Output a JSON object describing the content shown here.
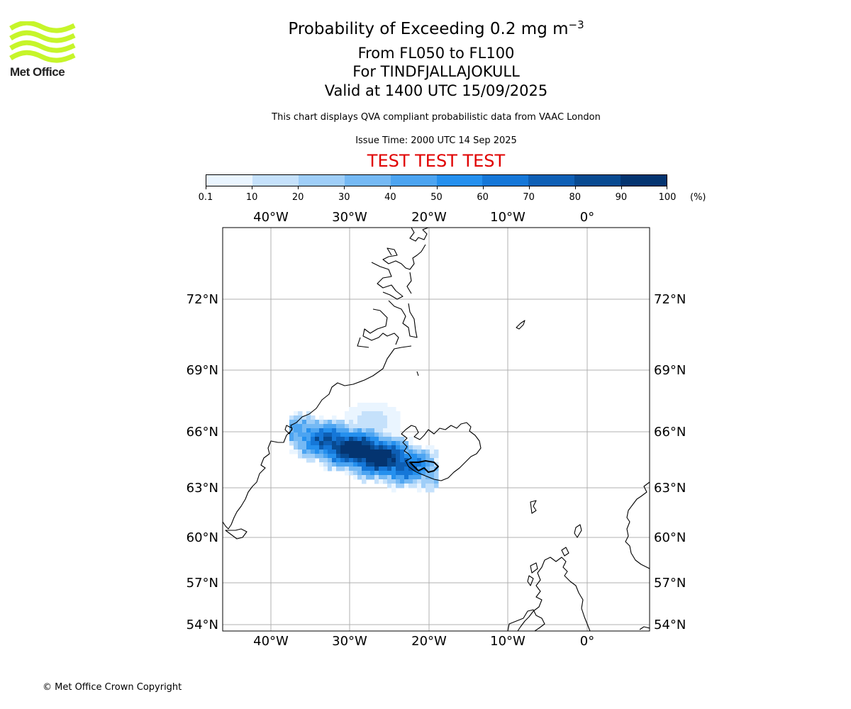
{
  "header": {
    "title_prefix": "Probability of Exceeding 0.2 mg m",
    "title_exponent": "−3",
    "levels": "From FL050 to FL100",
    "volcano": "For TINDFJALLAJOKULL",
    "valid": "Valid at 1400 UTC 15/09/2025",
    "subtitle": "This chart displays QVA compliant probabilistic data from VAAC London",
    "issue_time": "Issue Time: 2000 UTC 14 Sep 2025",
    "banner": "TEST TEST TEST"
  },
  "logo": {
    "text": "Met Office",
    "color": "#c6f52a"
  },
  "colorbar": {
    "labels": [
      "0.1",
      "10",
      "20",
      "30",
      "40",
      "50",
      "60",
      "70",
      "80",
      "90",
      "100"
    ],
    "unit": "(%)",
    "colors": [
      "#eaf5ff",
      "#c5e1fb",
      "#9fcef8",
      "#75b9f4",
      "#4ca4f1",
      "#2590ee",
      "#1577d8",
      "#0e5fb5",
      "#084a91",
      "#043470"
    ]
  },
  "map": {
    "lon_labels": [
      "40°W",
      "30°W",
      "20°W",
      "10°W",
      "0°"
    ],
    "lat_labels": [
      "72°N",
      "69°N",
      "66°N",
      "63°N",
      "60°N",
      "57°N",
      "54°N"
    ],
    "gridline_color": "#b0b0b0",
    "coastline_color": "#000000",
    "ash_cloud": {
      "region": "south-west of Iceland toward Greenland coast",
      "max_probability_pct": 100
    }
  },
  "footer": {
    "copyright": "© Met Office Crown Copyright"
  }
}
